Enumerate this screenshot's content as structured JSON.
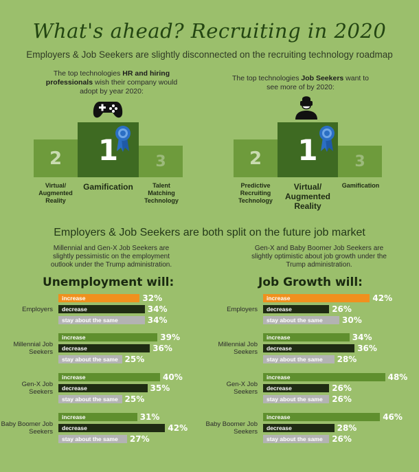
{
  "header": {
    "title": "What's ahead? Recruiting in 2020",
    "subtitle": "Employers & Job Seekers are slightly disconnected on the recruiting technology roadmap"
  },
  "podium_left": {
    "intro_pre": "The top technologies ",
    "intro_bold": "HR and hiring professionals",
    "intro_post": " wish their company would adopt by year 2020:",
    "icon": "gamepad-icon",
    "ranks": {
      "first": "1",
      "second": "2",
      "third": "3"
    },
    "labels": {
      "second": "Virtual/ Augmented Reality",
      "first": "Gamification",
      "third": "Talent Matching Technology"
    }
  },
  "podium_right": {
    "intro_pre": "The top technologies ",
    "intro_bold": "Job Seekers",
    "intro_post": " want to see more of by 2020:",
    "icon": "vr-headset-person-icon",
    "ranks": {
      "first": "1",
      "second": "2",
      "third": "3"
    },
    "labels": {
      "second": "Predictive Recruiting Technology",
      "first": "Virtual/ Augmented Reality",
      "third": "Gamification"
    }
  },
  "section2": {
    "title": "Employers & Job Seekers are both split on the future job market",
    "note_left": "Millennial and Gen-X Job Seekers are slightly pessimistic on the employment outlook under the Trump administration.",
    "note_right": "Gen-X and Baby Boomer Job Seekers are slightly optimistic about job growth under the Trump administration."
  },
  "colors": {
    "increase_employers": "#f0901e",
    "increase": "#5f8f2e",
    "decrease": "#1f2b13",
    "same": "#b3b3b3",
    "podium_dark": "#3e6a22",
    "podium_mid": "#6e9b3c"
  },
  "chart_data": [
    {
      "type": "bar",
      "title": "Unemployment will:",
      "unit": "%",
      "categories": [
        "increase",
        "decrease",
        "stay about the same"
      ],
      "groups": [
        {
          "name": "Employers",
          "values": [
            32,
            34,
            34
          ]
        },
        {
          "name": "Millennial Job Seekers",
          "values": [
            39,
            36,
            25
          ]
        },
        {
          "name": "Gen-X Job Seekers",
          "values": [
            40,
            35,
            25
          ]
        },
        {
          "name": "Baby Boomer Job Seekers",
          "values": [
            31,
            42,
            27
          ]
        }
      ]
    },
    {
      "type": "bar",
      "title": "Job Growth will:",
      "unit": "%",
      "categories": [
        "increase",
        "decrease",
        "stay about the same"
      ],
      "groups": [
        {
          "name": "Employers",
          "values": [
            42,
            26,
            30
          ]
        },
        {
          "name": "Millennial Job Seekers",
          "values": [
            34,
            36,
            28
          ]
        },
        {
          "name": "Gen-X Job Seekers",
          "values": [
            48,
            26,
            26
          ]
        },
        {
          "name": "Baby Boomer Job Seekers",
          "values": [
            46,
            28,
            26
          ]
        }
      ]
    }
  ]
}
